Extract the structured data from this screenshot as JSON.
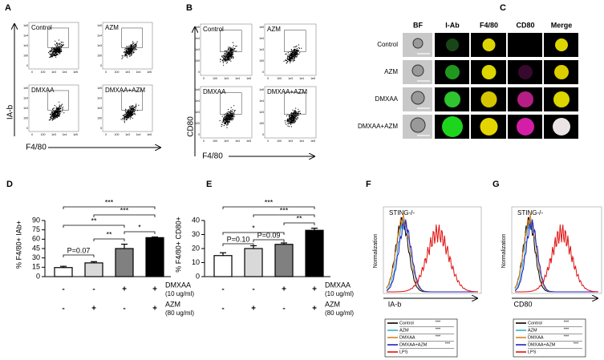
{
  "panels": {
    "A": {
      "label": "A",
      "x_label": "F4/80",
      "y_label": "IA-b",
      "plot_titles": [
        "Control",
        "AZM",
        "DMXAA",
        "DMXAA+AZM"
      ],
      "x_tick_labels": [
        "0",
        "100",
        "1e3",
        "1e4",
        "1e5"
      ],
      "y_tick_labels": [
        "1e5",
        "1e4",
        "1e3",
        "100",
        "0"
      ]
    },
    "B": {
      "label": "B",
      "x_label": "F4/80",
      "y_label": "CD80",
      "plot_titles": [
        "Control",
        "AZM",
        "DMXAA",
        "DMXAA+AZM"
      ],
      "x_tick_labels": [
        "0",
        "100",
        "1e3",
        "1e4",
        "1e5"
      ],
      "y_tick_labels": [
        "1e5",
        "1e4",
        "1e3",
        "100",
        "0"
      ]
    },
    "C": {
      "label": "C",
      "columns": [
        "BF",
        "I-Ab",
        "F4/80",
        "CD80",
        "Merge"
      ],
      "rows": [
        "Control",
        "AZM",
        "DMXAA",
        "DMXAA+AZM"
      ]
    },
    "D": {
      "label": "D",
      "type": "bar",
      "y_label": "% F4/80+ IAb+",
      "values": [
        14.5,
        22,
        45,
        62.5
      ],
      "errors": [
        2,
        2,
        7,
        1
      ],
      "colors": [
        "#ffffff",
        "#d9d9d9",
        "#808080",
        "#000000"
      ],
      "ylim": [
        0,
        90
      ],
      "yticks": [
        0,
        15,
        30,
        45,
        60,
        75,
        90
      ],
      "annotations": [
        "***",
        "***",
        "**",
        "*",
        "**",
        "P=0.07"
      ],
      "treatments": [
        {
          "name": "DMXAA",
          "dose": "(10 ug/ml)",
          "signs": [
            "-",
            "-",
            "+",
            "+"
          ]
        },
        {
          "name": "AZM",
          "dose": "(80 ug/ml)",
          "signs": [
            "-",
            "+",
            "-",
            "+"
          ]
        }
      ]
    },
    "E": {
      "label": "E",
      "type": "bar",
      "y_label": "% F4/80+ CD80+",
      "values": [
        15,
        20,
        23,
        33
      ],
      "errors": [
        2,
        2,
        1,
        1.5
      ],
      "colors": [
        "#ffffff",
        "#d9d9d9",
        "#808080",
        "#000000"
      ],
      "ylim": [
        0,
        40
      ],
      "yticks": [
        0,
        10,
        20,
        30,
        40
      ],
      "annotations": [
        "***",
        "***",
        "**",
        "*",
        "P=0.10",
        "P=0.09"
      ],
      "treatments": [
        {
          "name": "DMXAA",
          "dose": "(10 ug/ml)",
          "signs": [
            "-",
            "-",
            "+",
            "+"
          ]
        },
        {
          "name": "AZM",
          "dose": "(80 ug/ml)",
          "signs": [
            "-",
            "+",
            "-",
            "+"
          ]
        }
      ]
    },
    "F": {
      "label": "F",
      "title": "STING-/-",
      "y_label": "Normalization",
      "x_label": "IA-b",
      "series": [
        {
          "name": "Control",
          "color": "#000000"
        },
        {
          "name": "AZM",
          "color": "#30b0d0"
        },
        {
          "name": "DMXAA",
          "color": "#e08020"
        },
        {
          "name": "DMXAA+AZM",
          "color": "#2020c0"
        },
        {
          "name": "LPS",
          "color": "#e01010"
        }
      ],
      "significance": [
        "***",
        "***",
        "***",
        "***"
      ]
    },
    "G": {
      "label": "G",
      "title": "STING-/-",
      "y_label": "Normalization",
      "x_label": "CD80",
      "series": [
        {
          "name": "Control",
          "color": "#000000"
        },
        {
          "name": "AZM",
          "color": "#30b0d0"
        },
        {
          "name": "DMXAA",
          "color": "#e08020"
        },
        {
          "name": "DMXAA+AZM",
          "color": "#2020c0"
        },
        {
          "name": "LPS",
          "color": "#e01010"
        }
      ],
      "significance": [
        "***",
        "***",
        "***",
        "***"
      ]
    }
  }
}
